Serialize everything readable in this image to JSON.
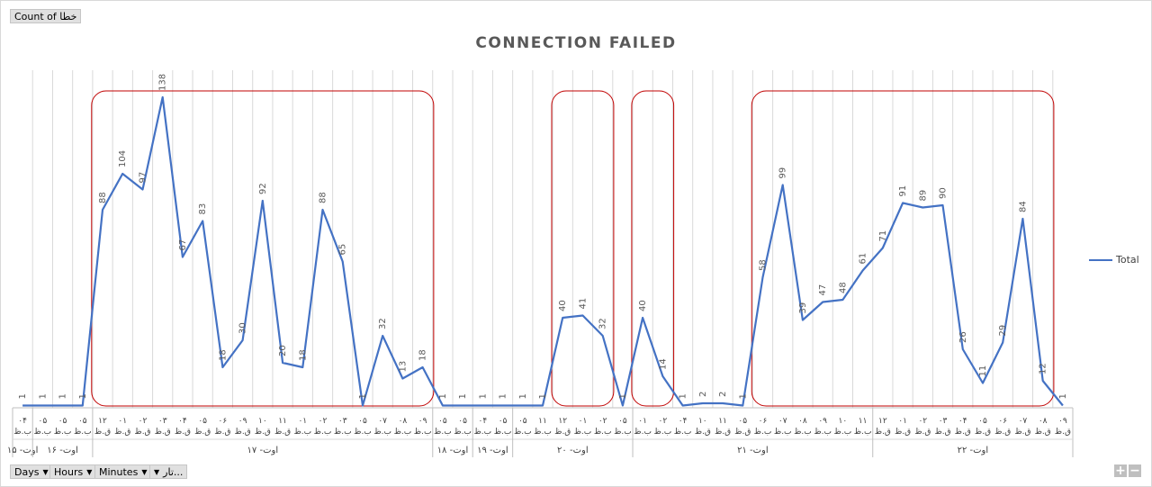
{
  "pivot": {
    "value_field": "Count of خطا",
    "row_fields": [
      "Days",
      "Hours",
      "Minutes",
      "تار..."
    ]
  },
  "legend_label": "Total",
  "colors": {
    "line": "#4472c4",
    "highlight": "#c00000",
    "grid": "#d9d9d9"
  },
  "chart_data": {
    "type": "line",
    "title": "CONNECTION FAILED",
    "ylim": [
      0,
      150
    ],
    "grid": "vertical",
    "legend_position": "right",
    "x": [
      "۰۴ ب.ظ",
      "۰۵ ب.ظ",
      "۰۵ ب.ظ",
      "۰۵ ب.ظ",
      "۱۲ ق.ظ",
      "۰۱ ق.ظ",
      "۰۲ ق.ظ",
      "۰۳ ق.ظ",
      "۰۴ ق.ظ",
      "۰۵ ق.ظ",
      "۰۶ ق.ظ",
      "۰۹ ق.ظ",
      "۱۰ ق.ظ",
      "۱۱ ق.ظ",
      "۰۱ ب.ظ",
      "۰۲ ب.ظ",
      "۰۳ ب.ظ",
      "۰۵ ب.ظ",
      "۰۷ ب.ظ",
      "۰۸ ب.ظ",
      "۰۹ ب.ظ",
      "۰۵ ب.ظ",
      "۰۵ ب.ظ",
      "۰۴ ب.ظ",
      "۰۵ ب.ظ",
      "۰۵ ب.ظ",
      "۱۱ ب.ظ",
      "۱۲ ق.ظ",
      "۰۱ ب.ظ",
      "۰۲ ب.ظ",
      "۰۵ ب.ظ",
      "۰۱ ب.ظ",
      "۰۲ ب.ظ",
      "۰۴ ب.ظ",
      "۱۰ ق.ظ",
      "۱۱ ق.ظ",
      "۰۵ ق.ظ",
      "۰۶ ب.ظ",
      "۰۷ ب.ظ",
      "۰۸ ب.ظ",
      "۰۹ ب.ظ",
      "۱۰ ب.ظ",
      "۱۱ ب.ظ",
      "۱۲ ق.ظ",
      "۰۱ ق.ظ",
      "۰۲ ق.ظ",
      "۰۳ ق.ظ",
      "۰۴ ق.ظ",
      "۰۵ ق.ظ",
      "۰۶ ق.ظ",
      "۰۷ ق.ظ",
      "۰۸ ق.ظ",
      "۰۹ ق.ظ"
    ],
    "series": [
      {
        "name": "Total",
        "values": [
          1,
          1,
          1,
          1,
          88,
          104,
          97,
          138,
          67,
          83,
          18,
          30,
          92,
          20,
          18,
          88,
          65,
          1,
          32,
          13,
          18,
          1,
          1,
          1,
          1,
          1,
          1,
          40,
          41,
          32,
          1,
          40,
          14,
          1,
          2,
          2,
          1,
          58,
          99,
          39,
          47,
          48,
          61,
          71,
          91,
          89,
          90,
          26,
          11,
          29,
          84,
          12,
          1
        ]
      }
    ],
    "groups": [
      {
        "label": "۱۵ -اوت",
        "from": 0,
        "to": 0
      },
      {
        "label": "۱۶ -اوت",
        "from": 1,
        "to": 3
      },
      {
        "label": "۱۷ -اوت",
        "from": 4,
        "to": 20
      },
      {
        "label": "۱۸ -اوت",
        "from": 21,
        "to": 22
      },
      {
        "label": "۱۹ -اوت",
        "from": 23,
        "to": 24
      },
      {
        "label": "۲۰ -اوت",
        "from": 25,
        "to": 30
      },
      {
        "label": "۲۱ -اوت",
        "from": 31,
        "to": 42
      },
      {
        "label": "۲۲ -اوت",
        "from": 43,
        "to": 52
      }
    ],
    "highlights": [
      {
        "from": 4,
        "to": 20
      },
      {
        "from": 27,
        "to": 29
      },
      {
        "from": 31,
        "to": 32
      },
      {
        "from": 37,
        "to": 51
      }
    ]
  }
}
